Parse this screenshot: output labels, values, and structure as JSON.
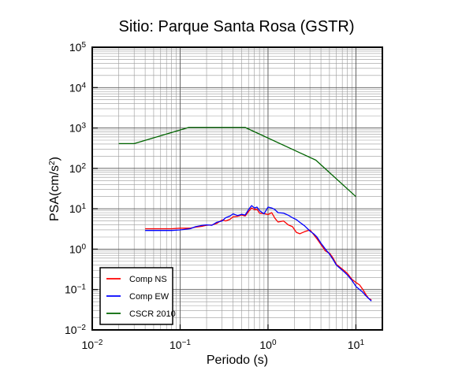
{
  "chart_data": {
    "type": "line",
    "title": "Sitio: Parque Santa Rosa (GSTR)",
    "xlabel": "Periodo (s)",
    "ylabel_main": "PSA(cm/s",
    "ylabel_sup": "2",
    "ylabel_end": ")",
    "xscale": "log",
    "yscale": "log",
    "xlim": [
      0.01,
      20
    ],
    "ylim": [
      0.01,
      100000
    ],
    "grid": true,
    "legend_position": "bottom-left",
    "x_ticks": [
      {
        "base": "10",
        "exp": "−2"
      },
      {
        "base": "10",
        "exp": "−1"
      },
      {
        "base": "10",
        "exp": "0"
      },
      {
        "base": "10",
        "exp": "1"
      }
    ],
    "y_ticks": [
      {
        "base": "10",
        "exp": "−2"
      },
      {
        "base": "10",
        "exp": "−1"
      },
      {
        "base": "10",
        "exp": "0"
      },
      {
        "base": "10",
        "exp": "1"
      },
      {
        "base": "10",
        "exp": "2"
      },
      {
        "base": "10",
        "exp": "3"
      },
      {
        "base": "10",
        "exp": "4"
      },
      {
        "base": "10",
        "exp": "5"
      }
    ],
    "series": [
      {
        "name": "Comp NS",
        "color": "#ff0000",
        "x": [
          0.04,
          0.06,
          0.08,
          0.1,
          0.13,
          0.15,
          0.18,
          0.2,
          0.23,
          0.26,
          0.3,
          0.33,
          0.37,
          0.4,
          0.45,
          0.5,
          0.55,
          0.6,
          0.65,
          0.7,
          0.75,
          0.8,
          0.9,
          1.0,
          1.1,
          1.2,
          1.3,
          1.5,
          1.7,
          1.9,
          2.1,
          2.3,
          2.6,
          3.0,
          3.3,
          3.6,
          4.0,
          4.5,
          5.0,
          5.5,
          6.0,
          7.0,
          8.0,
          9.0,
          10.0,
          11.0,
          12.0,
          13.0,
          14.0,
          15.0
        ],
        "y": [
          3.2,
          3.2,
          3.2,
          3.3,
          3.3,
          3.5,
          3.7,
          3.9,
          4.0,
          4.3,
          5.3,
          5.0,
          5.5,
          6.3,
          6.5,
          7.0,
          6.6,
          8.5,
          10.5,
          9.5,
          9.7,
          7.8,
          7.6,
          7.2,
          8.0,
          5.8,
          4.7,
          5.0,
          4.0,
          3.6,
          2.6,
          2.4,
          2.7,
          3.0,
          2.3,
          1.8,
          1.3,
          0.9,
          0.8,
          0.6,
          0.42,
          0.32,
          0.25,
          0.18,
          0.15,
          0.13,
          0.1,
          0.075,
          0.06,
          0.055
        ]
      },
      {
        "name": "Comp EW",
        "color": "#0000ff",
        "x": [
          0.04,
          0.06,
          0.08,
          0.1,
          0.13,
          0.15,
          0.18,
          0.2,
          0.23,
          0.26,
          0.3,
          0.33,
          0.37,
          0.4,
          0.45,
          0.5,
          0.55,
          0.6,
          0.65,
          0.7,
          0.75,
          0.8,
          0.9,
          1.0,
          1.1,
          1.2,
          1.3,
          1.5,
          1.7,
          1.9,
          2.1,
          2.3,
          2.6,
          3.0,
          3.3,
          3.6,
          4.0,
          4.5,
          5.0,
          5.5,
          6.0,
          7.0,
          8.0,
          9.0,
          10.0,
          11.0,
          12.0,
          13.0,
          14.0,
          15.0
        ],
        "y": [
          2.9,
          2.9,
          2.9,
          3.0,
          3.2,
          3.6,
          3.9,
          4.0,
          3.9,
          4.6,
          5.0,
          6.0,
          6.6,
          7.5,
          6.8,
          7.3,
          7.0,
          9.5,
          12.0,
          10.5,
          11.0,
          9.0,
          7.5,
          11.0,
          10.5,
          9.5,
          8.0,
          7.8,
          6.9,
          6.0,
          5.4,
          4.6,
          3.8,
          2.8,
          2.4,
          2.0,
          1.4,
          1.0,
          0.75,
          0.55,
          0.4,
          0.3,
          0.23,
          0.17,
          0.12,
          0.1,
          0.085,
          0.07,
          0.06,
          0.052
        ]
      },
      {
        "name": "CSCR 2010",
        "color": "#006400",
        "x": [
          0.02,
          0.03,
          0.125,
          0.55,
          3.5,
          10.0
        ],
        "y": [
          410,
          410,
          1030,
          1030,
          160,
          20
        ]
      }
    ]
  }
}
